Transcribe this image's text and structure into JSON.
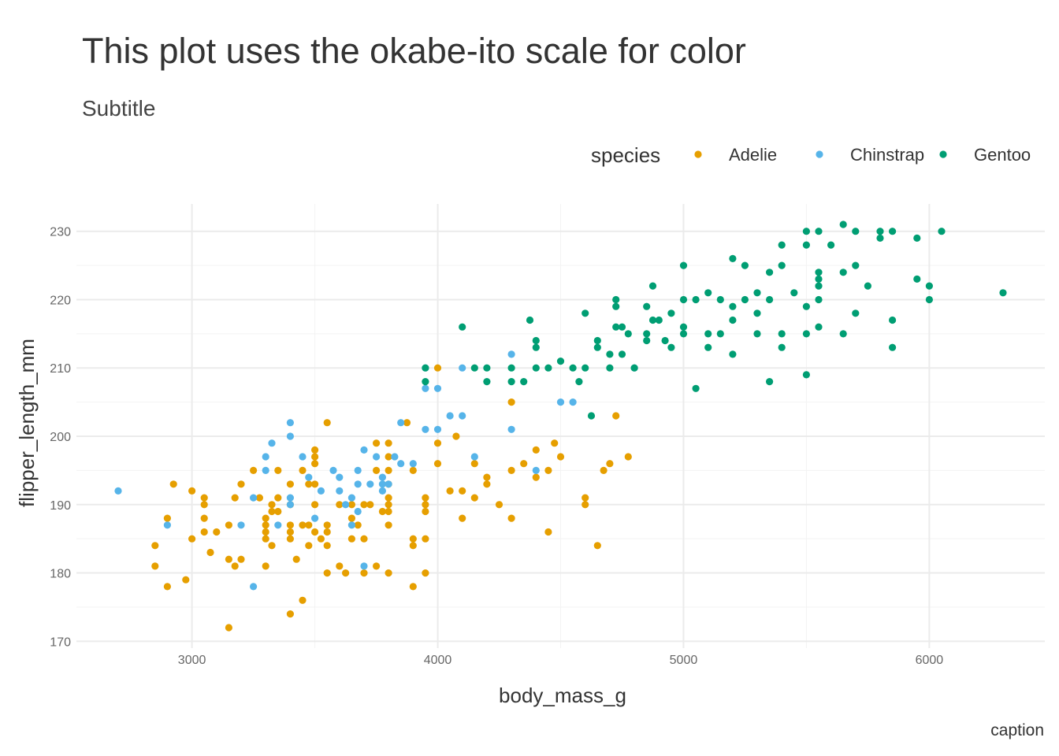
{
  "chart_data": {
    "type": "scatter",
    "title": "This plot uses the okabe-ito scale for color",
    "subtitle": "Subtitle",
    "caption": "caption",
    "xlabel": "body_mass_g",
    "ylabel": "flipper_length_mm",
    "xlim": [
      2530,
      6470
    ],
    "ylim": [
      169,
      234
    ],
    "xticks": [
      3000,
      4000,
      5000,
      6000
    ],
    "yticks": [
      170,
      180,
      190,
      200,
      210,
      220,
      230
    ],
    "grid": true,
    "legend": {
      "title": "species",
      "position": "top-right"
    },
    "series": [
      {
        "name": "Adelie",
        "color": "#E69F00",
        "points": [
          [
            2850,
            181
          ],
          [
            2850,
            184
          ],
          [
            2900,
            178
          ],
          [
            2900,
            188
          ],
          [
            2925,
            193
          ],
          [
            2975,
            179
          ],
          [
            3000,
            185
          ],
          [
            3000,
            192
          ],
          [
            3050,
            186
          ],
          [
            3050,
            188
          ],
          [
            3050,
            190
          ],
          [
            3050,
            191
          ],
          [
            3075,
            183
          ],
          [
            3100,
            186
          ],
          [
            3150,
            172
          ],
          [
            3150,
            182
          ],
          [
            3150,
            187
          ],
          [
            3175,
            181
          ],
          [
            3175,
            191
          ],
          [
            3200,
            182
          ],
          [
            3200,
            193
          ],
          [
            3250,
            195
          ],
          [
            3275,
            191
          ],
          [
            3300,
            181
          ],
          [
            3300,
            185
          ],
          [
            3300,
            186
          ],
          [
            3300,
            187
          ],
          [
            3300,
            188
          ],
          [
            3325,
            184
          ],
          [
            3325,
            189
          ],
          [
            3325,
            190
          ],
          [
            3350,
            195
          ],
          [
            3350,
            191
          ],
          [
            3350,
            189
          ],
          [
            3400,
            174
          ],
          [
            3400,
            185
          ],
          [
            3400,
            186
          ],
          [
            3400,
            187
          ],
          [
            3400,
            190
          ],
          [
            3400,
            193
          ],
          [
            3425,
            182
          ],
          [
            3450,
            195
          ],
          [
            3450,
            176
          ],
          [
            3450,
            187
          ],
          [
            3475,
            193
          ],
          [
            3475,
            184
          ],
          [
            3475,
            187
          ],
          [
            3500,
            190
          ],
          [
            3500,
            193
          ],
          [
            3500,
            196
          ],
          [
            3500,
            197
          ],
          [
            3500,
            198
          ],
          [
            3500,
            186
          ],
          [
            3525,
            185
          ],
          [
            3550,
            202
          ],
          [
            3550,
            180
          ],
          [
            3550,
            184
          ],
          [
            3550,
            186
          ],
          [
            3550,
            187
          ],
          [
            3600,
            181
          ],
          [
            3600,
            190
          ],
          [
            3625,
            180
          ],
          [
            3650,
            185
          ],
          [
            3650,
            188
          ],
          [
            3650,
            190
          ],
          [
            3675,
            187
          ],
          [
            3700,
            185
          ],
          [
            3700,
            190
          ],
          [
            3700,
            180
          ],
          [
            3725,
            190
          ],
          [
            3750,
            195
          ],
          [
            3750,
            199
          ],
          [
            3750,
            181
          ],
          [
            3775,
            189
          ],
          [
            3800,
            195
          ],
          [
            3800,
            190
          ],
          [
            3800,
            193
          ],
          [
            3800,
            187
          ],
          [
            3800,
            180
          ],
          [
            3800,
            191
          ],
          [
            3800,
            189
          ],
          [
            3800,
            197
          ],
          [
            3800,
            199
          ],
          [
            3875,
            202
          ],
          [
            3900,
            185
          ],
          [
            3900,
            195
          ],
          [
            3900,
            178
          ],
          [
            3900,
            184
          ],
          [
            3950,
            185
          ],
          [
            3950,
            190
          ],
          [
            3950,
            189
          ],
          [
            3950,
            180
          ],
          [
            3950,
            191
          ],
          [
            4000,
            210
          ],
          [
            4000,
            196
          ],
          [
            4000,
            199
          ],
          [
            4050,
            192
          ],
          [
            4075,
            200
          ],
          [
            4100,
            188
          ],
          [
            4100,
            192
          ],
          [
            4150,
            196
          ],
          [
            4150,
            191
          ],
          [
            4200,
            193
          ],
          [
            4200,
            194
          ],
          [
            4250,
            190
          ],
          [
            4300,
            188
          ],
          [
            4300,
            205
          ],
          [
            4300,
            195
          ],
          [
            4350,
            196
          ],
          [
            4400,
            198
          ],
          [
            4400,
            194
          ],
          [
            4450,
            186
          ],
          [
            4450,
            195
          ],
          [
            4475,
            199
          ],
          [
            4500,
            197
          ],
          [
            4600,
            190
          ],
          [
            4600,
            191
          ],
          [
            4650,
            184
          ],
          [
            4675,
            195
          ],
          [
            4700,
            196
          ],
          [
            4725,
            203
          ],
          [
            4775,
            197
          ]
        ]
      },
      {
        "name": "Chinstrap",
        "color": "#56B4E9",
        "points": [
          [
            2700,
            192
          ],
          [
            2900,
            187
          ],
          [
            3200,
            187
          ],
          [
            3250,
            178
          ],
          [
            3250,
            191
          ],
          [
            3300,
            197
          ],
          [
            3300,
            195
          ],
          [
            3325,
            199
          ],
          [
            3350,
            187
          ],
          [
            3400,
            202
          ],
          [
            3400,
            200
          ],
          [
            3400,
            190
          ],
          [
            3400,
            191
          ],
          [
            3450,
            197
          ],
          [
            3475,
            194
          ],
          [
            3500,
            188
          ],
          [
            3525,
            192
          ],
          [
            3575,
            195
          ],
          [
            3600,
            194
          ],
          [
            3600,
            192
          ],
          [
            3625,
            190
          ],
          [
            3650,
            191
          ],
          [
            3650,
            187
          ],
          [
            3675,
            189
          ],
          [
            3675,
            195
          ],
          [
            3675,
            193
          ],
          [
            3700,
            198
          ],
          [
            3700,
            181
          ],
          [
            3725,
            193
          ],
          [
            3750,
            197
          ],
          [
            3775,
            192
          ],
          [
            3775,
            194
          ],
          [
            3775,
            193
          ],
          [
            3800,
            193
          ],
          [
            3825,
            197
          ],
          [
            3850,
            196
          ],
          [
            3850,
            202
          ],
          [
            3900,
            196
          ],
          [
            3950,
            201
          ],
          [
            3950,
            210
          ],
          [
            3950,
            207
          ],
          [
            4000,
            201
          ],
          [
            4000,
            207
          ],
          [
            4050,
            203
          ],
          [
            4100,
            210
          ],
          [
            4100,
            203
          ],
          [
            4150,
            197
          ],
          [
            4300,
            201
          ],
          [
            4300,
            212
          ],
          [
            4400,
            195
          ],
          [
            4500,
            205
          ],
          [
            4550,
            205
          ],
          [
            4800,
            210
          ]
        ]
      },
      {
        "name": "Gentoo",
        "color": "#009E73",
        "points": [
          [
            3950,
            208
          ],
          [
            3950,
            210
          ],
          [
            4100,
            216
          ],
          [
            4150,
            210
          ],
          [
            4200,
            208
          ],
          [
            4200,
            210
          ],
          [
            4300,
            208
          ],
          [
            4300,
            210
          ],
          [
            4350,
            208
          ],
          [
            4375,
            217
          ],
          [
            4400,
            213
          ],
          [
            4400,
            214
          ],
          [
            4400,
            210
          ],
          [
            4450,
            210
          ],
          [
            4500,
            211
          ],
          [
            4550,
            210
          ],
          [
            4575,
            208
          ],
          [
            4600,
            210
          ],
          [
            4600,
            218
          ],
          [
            4625,
            203
          ],
          [
            4650,
            213
          ],
          [
            4650,
            214
          ],
          [
            4700,
            210
          ],
          [
            4700,
            212
          ],
          [
            4725,
            216
          ],
          [
            4725,
            219
          ],
          [
            4725,
            220
          ],
          [
            4750,
            216
          ],
          [
            4750,
            212
          ],
          [
            4775,
            215
          ],
          [
            4800,
            210
          ],
          [
            4850,
            219
          ],
          [
            4850,
            215
          ],
          [
            4850,
            214
          ],
          [
            4875,
            222
          ],
          [
            4875,
            217
          ],
          [
            4900,
            217
          ],
          [
            4925,
            214
          ],
          [
            4950,
            213
          ],
          [
            4950,
            218
          ],
          [
            5000,
            225
          ],
          [
            5000,
            216
          ],
          [
            5000,
            215
          ],
          [
            5000,
            220
          ],
          [
            5050,
            207
          ],
          [
            5050,
            220
          ],
          [
            5100,
            215
          ],
          [
            5100,
            213
          ],
          [
            5100,
            221
          ],
          [
            5150,
            215
          ],
          [
            5150,
            220
          ],
          [
            5200,
            226
          ],
          [
            5200,
            219
          ],
          [
            5200,
            217
          ],
          [
            5200,
            212
          ],
          [
            5250,
            225
          ],
          [
            5250,
            220
          ],
          [
            5300,
            221
          ],
          [
            5300,
            218
          ],
          [
            5300,
            215
          ],
          [
            5350,
            224
          ],
          [
            5350,
            220
          ],
          [
            5350,
            208
          ],
          [
            5400,
            228
          ],
          [
            5400,
            225
          ],
          [
            5400,
            215
          ],
          [
            5400,
            213
          ],
          [
            5450,
            221
          ],
          [
            5500,
            230
          ],
          [
            5500,
            228
          ],
          [
            5500,
            219
          ],
          [
            5500,
            215
          ],
          [
            5500,
            209
          ],
          [
            5550,
            230
          ],
          [
            5550,
            224
          ],
          [
            5550,
            223
          ],
          [
            5550,
            222
          ],
          [
            5550,
            220
          ],
          [
            5550,
            216
          ],
          [
            5600,
            228
          ],
          [
            5650,
            231
          ],
          [
            5650,
            224
          ],
          [
            5650,
            215
          ],
          [
            5700,
            230
          ],
          [
            5700,
            225
          ],
          [
            5700,
            218
          ],
          [
            5750,
            222
          ],
          [
            5800,
            230
          ],
          [
            5800,
            229
          ],
          [
            5850,
            230
          ],
          [
            5850,
            217
          ],
          [
            5850,
            213
          ],
          [
            5950,
            229
          ],
          [
            5950,
            223
          ],
          [
            6000,
            222
          ],
          [
            6000,
            220
          ],
          [
            6050,
            230
          ],
          [
            6300,
            221
          ]
        ]
      }
    ]
  }
}
